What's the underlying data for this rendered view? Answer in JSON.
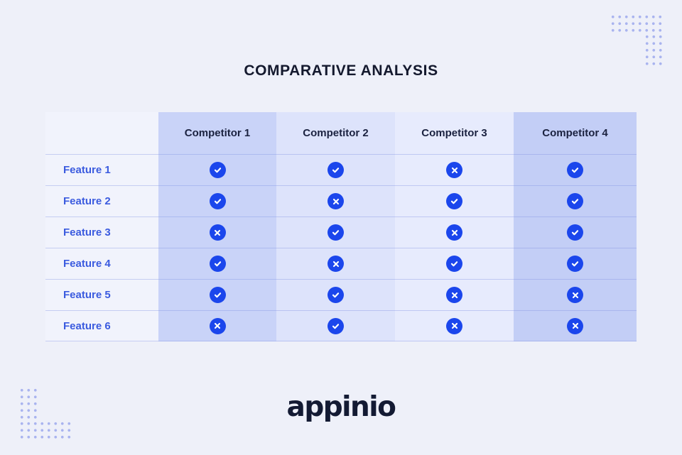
{
  "page": {
    "title": "COMPARATIVE ANALYSIS",
    "brand": "appinio"
  },
  "colors": {
    "background": "#eef0f9",
    "title_text": "#14192e",
    "header_text": "#1b2240",
    "feature_text": "#3b5bdf",
    "icon_blue": "#1b46ec",
    "icon_glyph": "#ffffff",
    "logo_text": "#131a33",
    "dots": "#a9b4ef",
    "column_backgrounds": [
      "#f1f3fc",
      "#c9d3f8",
      "#dde3fb",
      "#e7ebfd",
      "#c3cef6"
    ]
  },
  "table": {
    "headers": [
      "",
      "Competitor 1",
      "Competitor 2",
      "Competitor 3",
      "Competitor 4"
    ],
    "rows": [
      {
        "label": "Feature 1",
        "values": [
          "check",
          "check",
          "cross",
          "check"
        ]
      },
      {
        "label": "Feature 2",
        "values": [
          "check",
          "cross",
          "check",
          "check"
        ]
      },
      {
        "label": "Feature 3",
        "values": [
          "cross",
          "check",
          "cross",
          "check"
        ]
      },
      {
        "label": "Feature 4",
        "values": [
          "check",
          "cross",
          "check",
          "check"
        ]
      },
      {
        "label": "Feature 5",
        "values": [
          "check",
          "check",
          "cross",
          "cross"
        ]
      },
      {
        "label": "Feature 6",
        "values": [
          "cross",
          "check",
          "cross",
          "cross"
        ]
      }
    ]
  },
  "chart_data": {
    "type": "table",
    "title": "COMPARATIVE ANALYSIS",
    "columns": [
      "Competitor 1",
      "Competitor 2",
      "Competitor 3",
      "Competitor 4"
    ],
    "row_labels": [
      "Feature 1",
      "Feature 2",
      "Feature 3",
      "Feature 4",
      "Feature 5",
      "Feature 6"
    ],
    "values": [
      [
        true,
        true,
        false,
        true
      ],
      [
        true,
        false,
        true,
        true
      ],
      [
        false,
        true,
        false,
        true
      ],
      [
        true,
        false,
        true,
        true
      ],
      [
        true,
        true,
        false,
        false
      ],
      [
        false,
        true,
        false,
        false
      ]
    ],
    "legend": "true = blue check badge, false = blue cross badge"
  }
}
